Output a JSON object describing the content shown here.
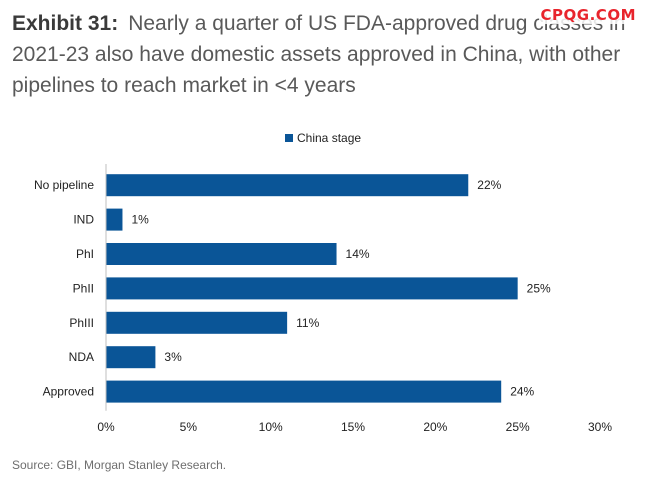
{
  "header": {
    "exhibit": "Exhibit 31:",
    "title": "Nearly a quarter of US FDA-approved drug classes in 2021-23 also have domestic assets approved in China, with other pipelines to reach market in <4 years"
  },
  "watermark": "CPQG.COM",
  "chart_data": {
    "type": "bar",
    "orientation": "horizontal",
    "title": "",
    "xlabel": "",
    "ylabel": "",
    "categories": [
      "No pipeline",
      "IND",
      "PhI",
      "PhII",
      "PhIII",
      "NDA",
      "Approved"
    ],
    "series": [
      {
        "name": "China stage",
        "values": [
          22,
          1,
          14,
          25,
          11,
          3,
          24
        ],
        "color": "#0a5597"
      }
    ],
    "data_labels": [
      "22%",
      "1%",
      "14%",
      "25%",
      "11%",
      "3%",
      "24%"
    ],
    "xlim": [
      0,
      30
    ],
    "xticks": [
      0,
      5,
      10,
      15,
      20,
      25,
      30
    ],
    "xtick_labels": [
      "0%",
      "5%",
      "10%",
      "15%",
      "20%",
      "25%",
      "30%"
    ],
    "legend": "top-center",
    "grid": false
  },
  "source": "Source: GBI, Morgan Stanley Research."
}
